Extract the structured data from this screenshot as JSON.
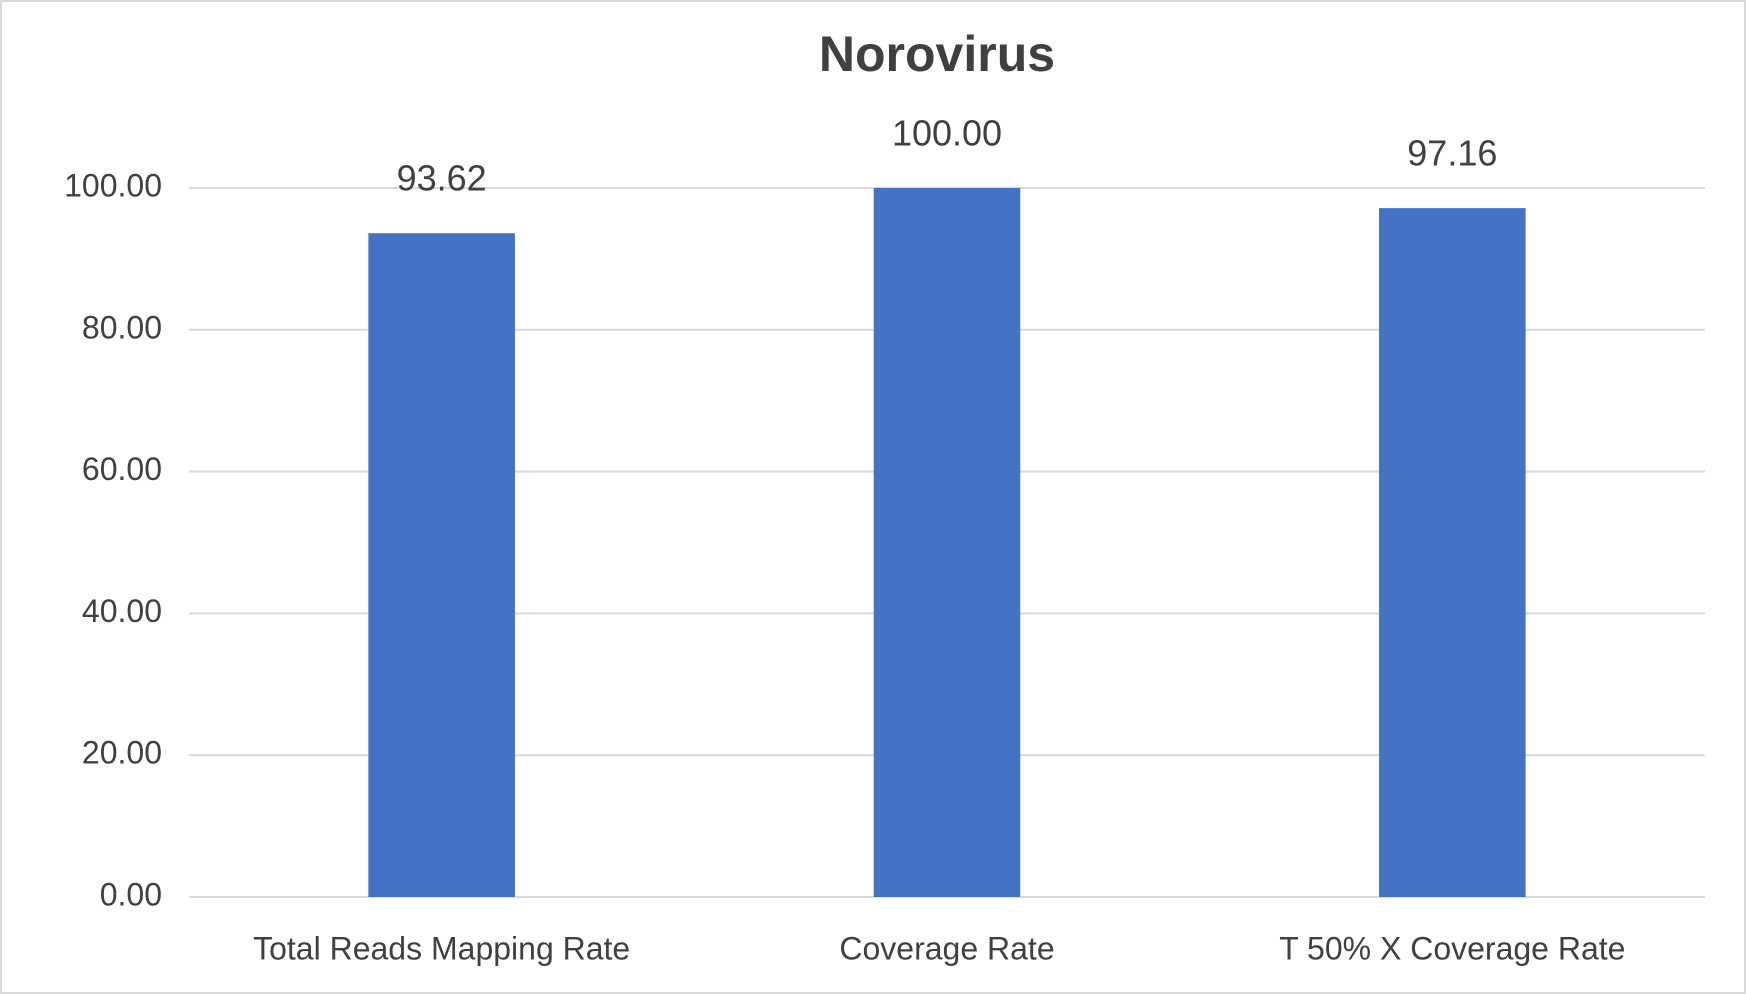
{
  "chart_data": {
    "type": "bar",
    "title": "Norovirus",
    "categories": [
      "Total Reads Mapping Rate",
      "Coverage Rate",
      "T 50% X Coverage Rate"
    ],
    "values": [
      93.62,
      100,
      97.16
    ],
    "value_labels": [
      "93.62",
      "100.00",
      "97.16"
    ],
    "color": "#4472c4",
    "ylim": [
      0,
      100
    ],
    "yticks": [
      {
        "value": 0,
        "label": "0.00"
      },
      {
        "value": 20,
        "label": "20.00"
      },
      {
        "value": 40,
        "label": "40.00"
      },
      {
        "value": 60,
        "label": "60.00"
      },
      {
        "value": 80,
        "label": "80.00"
      },
      {
        "value": 100,
        "label": "100.00"
      }
    ],
    "grid": true
  }
}
